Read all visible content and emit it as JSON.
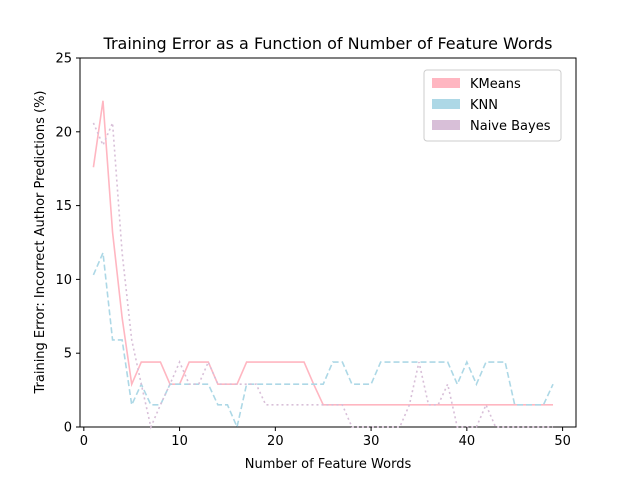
{
  "chart_data": {
    "type": "line",
    "title": "Training Error as a Function of Number of Feature Words",
    "xlabel": "Number of Feature Words",
    "ylabel": "Training Error: Incorrect Author Predictions (%)",
    "xlim": [
      -0.4,
      51.4
    ],
    "ylim": [
      0,
      25
    ],
    "xticks": [
      0,
      10,
      20,
      30,
      40,
      50
    ],
    "yticks": [
      0,
      5,
      10,
      15,
      20,
      25
    ],
    "grid": false,
    "legend_position": "top-right",
    "series": [
      {
        "name": "KMeans",
        "color": "#ffb6c1",
        "dash": "solid",
        "x": [
          1,
          2,
          3,
          4,
          5,
          6,
          7,
          8,
          9,
          10,
          11,
          12,
          13,
          14,
          15,
          16,
          17,
          18,
          19,
          20,
          21,
          22,
          23,
          24,
          25,
          26,
          27,
          28,
          29,
          30,
          31,
          32,
          33,
          34,
          35,
          36,
          37,
          38,
          39,
          40,
          41,
          42,
          43,
          44,
          45,
          46,
          47,
          48,
          49
        ],
        "values": [
          17.6,
          22.1,
          13.2,
          7.4,
          2.9,
          4.4,
          4.4,
          4.4,
          2.9,
          2.9,
          4.4,
          4.4,
          4.4,
          2.9,
          2.9,
          2.9,
          4.4,
          4.4,
          4.4,
          4.4,
          4.4,
          4.4,
          4.4,
          2.9,
          1.5,
          1.5,
          1.5,
          1.5,
          1.5,
          1.5,
          1.5,
          1.5,
          1.5,
          1.5,
          1.5,
          1.5,
          1.5,
          1.5,
          1.5,
          1.5,
          1.5,
          1.5,
          1.5,
          1.5,
          1.5,
          1.5,
          1.5,
          1.5,
          1.5
        ]
      },
      {
        "name": "KNN",
        "color": "#add8e6",
        "dash": "dashed",
        "x": [
          1,
          2,
          3,
          4,
          5,
          6,
          7,
          8,
          9,
          10,
          11,
          12,
          13,
          14,
          15,
          16,
          17,
          18,
          19,
          20,
          21,
          22,
          23,
          24,
          25,
          26,
          27,
          28,
          29,
          30,
          31,
          32,
          33,
          34,
          35,
          36,
          37,
          38,
          39,
          40,
          41,
          42,
          43,
          44,
          45,
          46,
          47,
          48,
          49
        ],
        "values": [
          10.3,
          11.8,
          5.9,
          5.9,
          1.5,
          2.9,
          1.5,
          1.5,
          2.9,
          2.9,
          2.9,
          2.9,
          2.9,
          1.5,
          1.5,
          0.0,
          2.9,
          2.9,
          2.9,
          2.9,
          2.9,
          2.9,
          2.9,
          2.9,
          2.9,
          4.4,
          4.4,
          2.9,
          2.9,
          2.9,
          4.4,
          4.4,
          4.4,
          4.4,
          4.4,
          4.4,
          4.4,
          4.4,
          2.9,
          4.4,
          2.9,
          4.4,
          4.4,
          4.4,
          1.5,
          1.5,
          1.5,
          1.5,
          2.9
        ]
      },
      {
        "name": "Naive Bayes",
        "color": "#d8bfd8",
        "dash": "dotted",
        "x": [
          1,
          2,
          3,
          4,
          5,
          6,
          7,
          8,
          9,
          10,
          11,
          12,
          13,
          14,
          15,
          16,
          17,
          18,
          19,
          20,
          21,
          22,
          23,
          24,
          25,
          26,
          27,
          28,
          29,
          30,
          31,
          32,
          33,
          34,
          35,
          36,
          37,
          38,
          39,
          40,
          41,
          42,
          43,
          44,
          45,
          46,
          47,
          48,
          49
        ],
        "values": [
          20.6,
          19.1,
          20.6,
          11.8,
          5.9,
          2.9,
          0.0,
          1.5,
          2.9,
          4.4,
          2.9,
          2.9,
          4.4,
          2.9,
          2.9,
          2.9,
          2.9,
          2.9,
          1.5,
          1.5,
          1.5,
          1.5,
          1.5,
          1.5,
          1.5,
          1.5,
          1.5,
          0.0,
          0.0,
          0.0,
          0.0,
          0.0,
          0.0,
          1.5,
          4.4,
          1.5,
          1.5,
          2.9,
          0.0,
          0.0,
          0.0,
          1.5,
          0.0,
          0.0,
          0.0,
          0.0,
          0.0,
          0.0,
          0.0
        ]
      }
    ]
  }
}
